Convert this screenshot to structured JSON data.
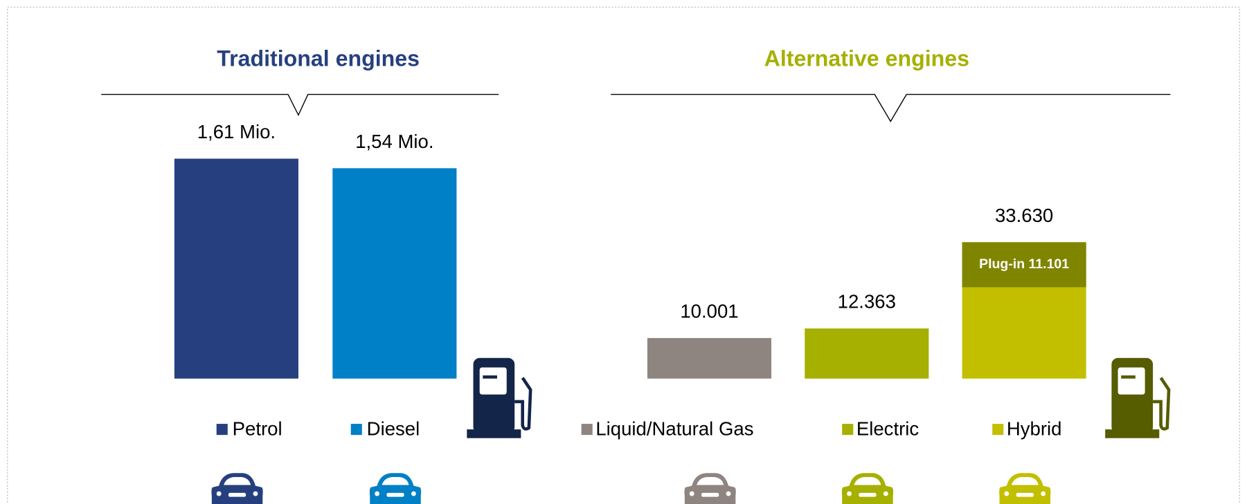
{
  "chart_data": [
    {
      "type": "bar",
      "title": "Traditional engines",
      "title_color": "#26407f",
      "categories": [
        "Petrol",
        "Diesel"
      ],
      "values": [
        1610000,
        1540000
      ],
      "value_labels": [
        "1,61 Mio.",
        "1,54 Mio."
      ],
      "colors": [
        "#26407f",
        "#0080c6"
      ],
      "ylim": [
        0,
        1900000
      ],
      "pump_color": "#14254a"
    },
    {
      "type": "bar",
      "title": "Alternative engines",
      "title_color": "#a5b000",
      "categories": [
        "Liquid/Natural Gas",
        "Electric",
        "Hybrid"
      ],
      "values": [
        10001,
        12363,
        33630
      ],
      "value_labels": [
        "10.001",
        "12.363",
        "33.630"
      ],
      "colors": [
        "#8f8580",
        "#a5b000",
        "#c2bf00"
      ],
      "ylim": [
        0,
        64000
      ],
      "pump_color": "#565c00",
      "annotation": {
        "category": "Hybrid",
        "label": "Plug-in 11.101",
        "value": 11101,
        "color": "#808500"
      }
    }
  ]
}
